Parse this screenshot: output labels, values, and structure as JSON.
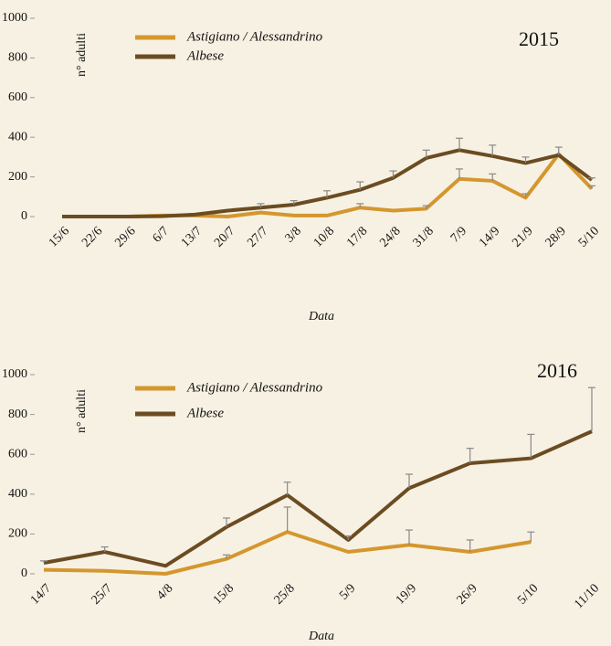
{
  "chart_data": [
    {
      "type": "line",
      "year": "2015",
      "ylabel": "n° adulti",
      "xlabel": "Data",
      "categories": [
        "15/6",
        "22/6",
        "29/6",
        "6/7",
        "13/7",
        "20/7",
        "27/7",
        "3/8",
        "10/8",
        "17/8",
        "24/8",
        "31/8",
        "7/9",
        "14/9",
        "21/9",
        "28/9",
        "5/10"
      ],
      "ylim": [
        0,
        1000
      ],
      "yticks": [
        0,
        200,
        400,
        600,
        800,
        1000
      ],
      "series": [
        {
          "name": "Astigiano / Alessandrino",
          "color": "#d4972e",
          "values": [
            0,
            0,
            0,
            5,
            5,
            0,
            20,
            5,
            5,
            45,
            30,
            40,
            190,
            180,
            95,
            315,
            140
          ],
          "errors": [
            null,
            null,
            null,
            null,
            null,
            null,
            null,
            null,
            null,
            20,
            null,
            15,
            50,
            35,
            20,
            null,
            15
          ]
        },
        {
          "name": "Albese",
          "color": "#6b4c22",
          "values": [
            0,
            0,
            0,
            2,
            10,
            30,
            45,
            60,
            95,
            135,
            195,
            295,
            335,
            305,
            270,
            310,
            185
          ],
          "errors": [
            null,
            null,
            null,
            null,
            null,
            null,
            20,
            20,
            35,
            40,
            35,
            40,
            60,
            55,
            30,
            40,
            10
          ]
        }
      ]
    },
    {
      "type": "line",
      "year": "2016",
      "ylabel": "n° adulti",
      "xlabel": "Data",
      "categories": [
        "14/7",
        "25/7",
        "4/8",
        "15/8",
        "25/8",
        "5/9",
        "19/9",
        "26/9",
        "5/10",
        "11/10"
      ],
      "ylim": [
        0,
        1000
      ],
      "yticks": [
        0,
        200,
        400,
        600,
        800,
        1000
      ],
      "series": [
        {
          "name": "Astigiano / Alessandrino",
          "color": "#d4972e",
          "values": [
            20,
            15,
            0,
            75,
            210,
            110,
            145,
            110,
            160,
            null
          ],
          "errors": [
            null,
            null,
            null,
            20,
            125,
            null,
            75,
            60,
            50,
            null
          ]
        },
        {
          "name": "Albese",
          "color": "#6b4c22",
          "values": [
            55,
            110,
            40,
            235,
            395,
            170,
            430,
            555,
            580,
            715
          ],
          "errors": [
            10,
            25,
            null,
            45,
            65,
            20,
            70,
            75,
            120,
            220
          ]
        }
      ]
    }
  ]
}
